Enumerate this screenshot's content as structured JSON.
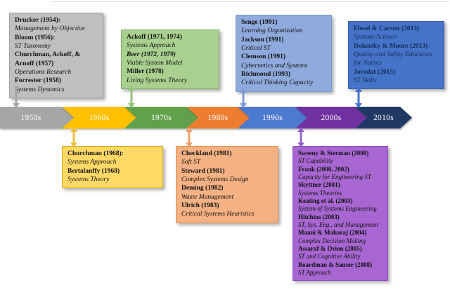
{
  "timeline": {
    "decades": [
      {
        "label": "1950s",
        "color": "#a6a6a6"
      },
      {
        "label": "1960s",
        "color": "#ffc000"
      },
      {
        "label": "1970s",
        "color": "#61a14c"
      },
      {
        "label": "1980s",
        "color": "#ed7d31"
      },
      {
        "label": "1990s",
        "color": "#4d79cf"
      },
      {
        "label": "2000s",
        "color": "#7030a0"
      },
      {
        "label": "2010s",
        "color": "#1f3864"
      }
    ]
  },
  "boxes": [
    {
      "era": "1950s",
      "position": "above",
      "fill": "#bfbfbf",
      "border": "#a0a0a0",
      "text_color": "#111111",
      "connector": "#a6a6a6",
      "entries": [
        {
          "name": "Drucker (1954):",
          "desc": "Management by Objective"
        },
        {
          "name": "Bloom (1956):",
          "desc": "ST Taxonomy"
        },
        {
          "name": "Churchman, Ackoff, & Arnoff (1957)",
          "desc": "Operations Research"
        },
        {
          "name": "Forrester (1958)",
          "desc": "Systems Dynamics"
        }
      ]
    },
    {
      "era": "1970s",
      "position": "above",
      "fill": "#a9d08e",
      "border": "#84a96a",
      "text_color": "#111111",
      "connector": "#93c47d",
      "entries": [
        {
          "name": "Ackoff (1971, 1974)",
          "desc": "Systems Approach"
        },
        {
          "name": "Beer (1972, 1979)",
          "desc": "Viable System Model",
          "name_italic": true
        },
        {
          "name": "Miller (1978)",
          "desc": "Living Systems Theory"
        }
      ]
    },
    {
      "era": "1990s",
      "position": "above",
      "fill": "#8faadc",
      "border": "#7b97cf",
      "text_color": "#111111",
      "connector": "#7d9ad8",
      "entries": [
        {
          "name": "Senge (1991)",
          "desc": "Learning Organization"
        },
        {
          "name": "Jackson (1991)",
          "desc": "Critical ST"
        },
        {
          "name": "Clemson (1991)",
          "desc": "Cybernetics and Systems"
        },
        {
          "name": "Richmond (1993)",
          "desc": "Critical Thinking Capacity"
        }
      ]
    },
    {
      "era": "2010s",
      "position": "above",
      "fill": "#4573c7",
      "border": "#3a5fa8",
      "text_color": "#152c54",
      "connector": "#4573c7",
      "entries": [
        {
          "name": "Flood & Carson (2013)",
          "desc": "Systems Science"
        },
        {
          "name": "Dolansky & Moore (2013)",
          "desc": "Quality and Safety Education for Nurses"
        },
        {
          "name": "Jaradat (2015)",
          "desc": "ST Skills"
        }
      ]
    },
    {
      "era": "1960s",
      "position": "below",
      "fill": "#ffd966",
      "border": "#d8ab1e",
      "text_color": "#111111",
      "connector": "#edbe3a",
      "entries": [
        {
          "name": "Churchman (1968):",
          "desc": "Systems Approach"
        },
        {
          "name": "Bertalanffy (1968)",
          "desc": "Systems Theory"
        }
      ]
    },
    {
      "era": "1980s",
      "position": "below",
      "fill": "#f4b183",
      "border": "#dd9157",
      "text_color": "#111111",
      "connector": "#eda16d",
      "entries": [
        {
          "name": "Checkland (1981)",
          "desc": "Soft ST"
        },
        {
          "name": "Steward (1981)",
          "desc": "Complex Systems Design"
        },
        {
          "name": "Deming (1982)",
          "desc": "Waste Management"
        },
        {
          "name": "Ulrich (1983)",
          "desc": "Critical Systems Heuristics"
        }
      ]
    },
    {
      "era": "2000s",
      "position": "below",
      "fill": "#a766d1",
      "border": "#8e4cbb",
      "text_color": "#111111",
      "connector": "#8f63c8",
      "entries": [
        {
          "name": "Sweeny & Sterman (2000)",
          "desc": "ST Capability"
        },
        {
          "name": "Frank (2000, 2002)",
          "desc": "Capacity for Engineering ST"
        },
        {
          "name": "Skyttner (2001)",
          "desc": "Systems Theories"
        },
        {
          "name": "Keating et al. (2003)",
          "desc": "System of Systems Engineering"
        },
        {
          "name": "Hitchins (2003)",
          "desc": "ST, Sys. Eng., and Management"
        },
        {
          "name": "Maani & Maharaj (2004)",
          "desc": "Complex Decision Making"
        },
        {
          "name": "Assaraf & Orion (2005)",
          "desc": "ST and Cognitive Ability"
        },
        {
          "name": "Boardman & Sauser (2008)",
          "desc": "ST Approach"
        }
      ]
    }
  ]
}
